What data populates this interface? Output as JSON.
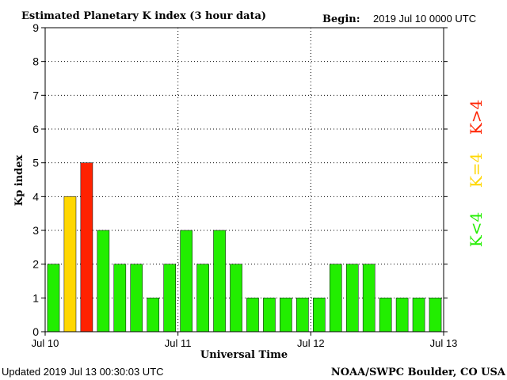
{
  "chart_data": {
    "type": "bar",
    "title": "Estimated Planetary K index (3 hour data)",
    "begin_label": "Begin:",
    "begin_value": "2019 Jul 10 0000 UTC",
    "ylabel": "Kp index",
    "xlabel": "Universal Time",
    "ylim": [
      0,
      9
    ],
    "yticks": [
      "0",
      "1",
      "2",
      "3",
      "4",
      "5",
      "6",
      "7",
      "8",
      "9"
    ],
    "xtick_labels": [
      "Jul 10",
      "Jul 11",
      "Jul 12",
      "Jul 13"
    ],
    "grid": true,
    "values": [
      2,
      4,
      5,
      3,
      2,
      2,
      1,
      2,
      3,
      2,
      3,
      2,
      1,
      1,
      1,
      1,
      1,
      2,
      2,
      2,
      1,
      1,
      1,
      1
    ],
    "colors": {
      "below_4": "#22ee00",
      "equal_4": "#ffd700",
      "above_4": "#ff2200"
    },
    "legend": {
      "placement": "right",
      "items": [
        {
          "label": "K<4",
          "color": "#22ee00"
        },
        {
          "label": "K=4",
          "color": "#ffd700"
        },
        {
          "label": "K>4",
          "color": "#ff2200"
        }
      ]
    }
  },
  "footer": {
    "updated": "Updated 2019 Jul 13 00:30:03 UTC",
    "source": "NOAA/SWPC Boulder, CO USA"
  }
}
